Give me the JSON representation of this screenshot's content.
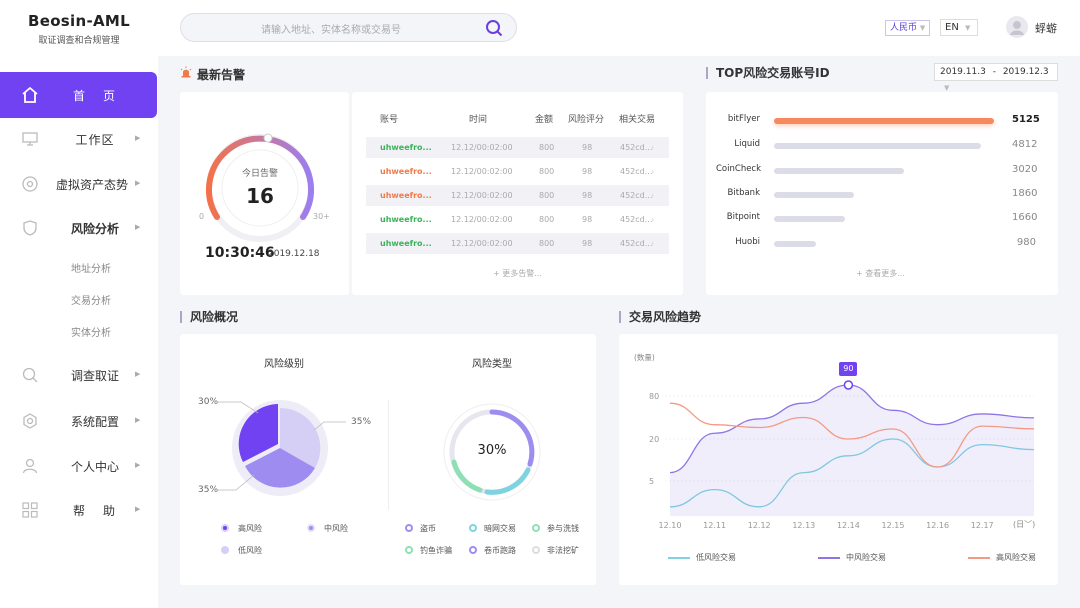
{
  "brand": {
    "name": "Beosin-AML",
    "subtitle": "取证调查和合规管理"
  },
  "nav": {
    "home": "首页",
    "workspace": "工作区",
    "virtual_assets": "虚拟资产态势",
    "risk_analysis": "风险分析",
    "risk_sub": [
      "地址分析",
      "交易分析",
      "实体分析"
    ],
    "investigation": "调查取证",
    "system": "系统配置",
    "personal": "个人中心",
    "help": "帮助"
  },
  "topbar": {
    "search_placeholder": "请输入地址、实体名称或交易号",
    "currency": "人民币",
    "language": "EN",
    "username": "蜉蝣"
  },
  "alerts": {
    "title": "最新告警",
    "today_label": "今日告警",
    "today_count": "16",
    "gauge_min": "0",
    "gauge_max": "30+",
    "time": "10:30:46",
    "date": "2019.12.18",
    "columns": [
      "账号",
      "时间",
      "金额",
      "风险评分",
      "相关交易"
    ],
    "rows": [
      {
        "account": "uhweefro...",
        "time": "12.12/00:02:00",
        "amount": "800",
        "score": "98",
        "tx": "452cd...",
        "color": "#3cb35a"
      },
      {
        "account": "uhweefro...",
        "time": "12.12/00:02:00",
        "amount": "800",
        "score": "98",
        "tx": "452cd...",
        "color": "#f07a4a"
      },
      {
        "account": "uhweefro...",
        "time": "12.12/00:02:00",
        "amount": "800",
        "score": "98",
        "tx": "452cd...",
        "color": "#f07a4a"
      },
      {
        "account": "uhweefro...",
        "time": "12.12/00:02:00",
        "amount": "800",
        "score": "98",
        "tx": "452cd...",
        "color": "#3cb35a"
      },
      {
        "account": "uhweefro...",
        "time": "12.12/00:02:00",
        "amount": "800",
        "score": "98",
        "tx": "452cd...",
        "color": "#3cb35a"
      }
    ],
    "more": "更多告警..."
  },
  "top_risk": {
    "title": "TOP风险交易账号ID",
    "date_from": "2019.11.3",
    "date_sep": "-",
    "date_to": "2019.12.3",
    "rows": [
      {
        "name": "bitFlyer",
        "value": 5125
      },
      {
        "name": "Liquid",
        "value": 4812
      },
      {
        "name": "CoinCheck",
        "value": 3020
      },
      {
        "name": "Bitbank",
        "value": 1860
      },
      {
        "name": "Bitpoint",
        "value": 1660
      },
      {
        "name": "Huobi",
        "value": 980
      }
    ],
    "more": "查看更多..."
  },
  "overview": {
    "title": "风险概况",
    "level_title": "风险级别",
    "level_pcts": [
      "30%",
      "35%",
      "35%"
    ],
    "level_legend": [
      "高风险",
      "中风险",
      "低风险"
    ],
    "type_title": "风险类型",
    "type_pct": "30%",
    "type_legend": [
      "盗币",
      "暗网交易",
      "参与洗钱",
      "钓鱼诈骗",
      "卷币跑路",
      "非法挖矿"
    ]
  },
  "trend": {
    "title": "交易风险趋势",
    "ylabel": "(数量)",
    "period": "日",
    "peak_label": "90"
  },
  "chart_data": {
    "type": "line",
    "title": "交易风险趋势",
    "ylabel": "数量",
    "x": [
      "12.10",
      "12.11",
      "12.12",
      "12.13",
      "12.14",
      "12.15",
      "12.16",
      "12.17"
    ],
    "yticks": [
      "5",
      "20",
      "80"
    ],
    "series": [
      {
        "name": "低风险交易",
        "color": "#7fd3e0",
        "values": [
          2,
          4,
          2,
          8,
          14,
          20,
          10,
          18
        ]
      },
      {
        "name": "中风险交易",
        "color": "#8f74e6",
        "values": [
          8,
          28,
          48,
          70,
          90,
          60,
          40,
          55
        ]
      },
      {
        "name": "高风险交易",
        "color": "#f39a86",
        "values": [
          70,
          40,
          36,
          50,
          20,
          34,
          10,
          38
        ]
      }
    ]
  }
}
